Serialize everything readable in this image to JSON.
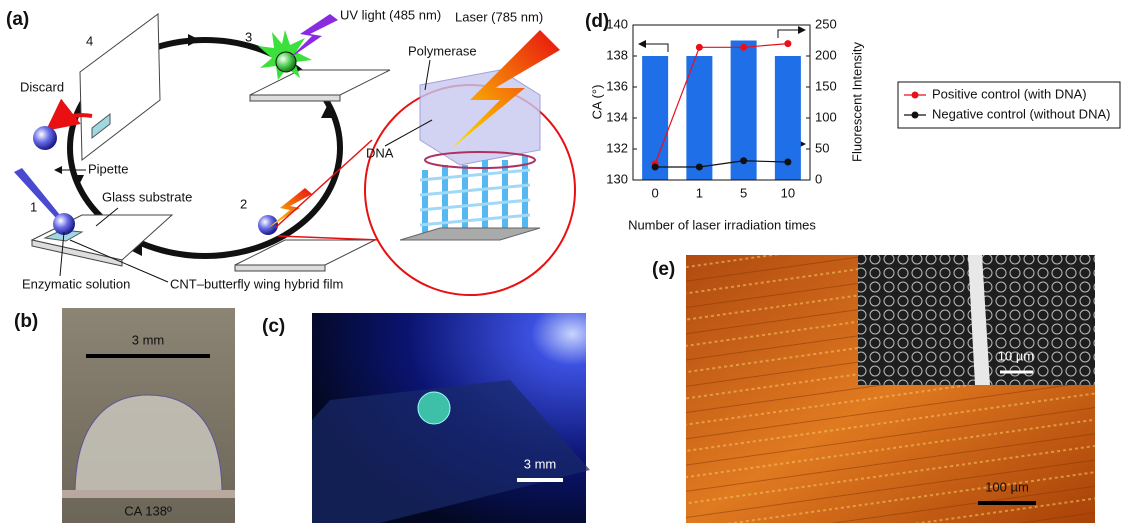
{
  "panel_a": {
    "label": "(a)",
    "step_numbers": [
      "1",
      "2",
      "3",
      "4"
    ],
    "uv_light": "UV light (485 nm)",
    "laser": "Laser (785 nm)",
    "polymerase": "Polymerase",
    "dna": "DNA",
    "discard": "Discard",
    "pipette": "Pipette",
    "glass_substrate": "Glass substrate",
    "enzymatic_solution": "Enzymatic solution",
    "hybrid_film": "CNT–butterfly wing hybrid film"
  },
  "panel_b": {
    "label": "(b)",
    "scale_bar": "3 mm",
    "contact_angle": "CA 138º"
  },
  "panel_c": {
    "label": "(c)",
    "scale_bar": "3 mm"
  },
  "panel_d": {
    "label": "(d)"
  },
  "chart_data": {
    "type": "bar",
    "categories": [
      "0",
      "1",
      "5",
      "10"
    ],
    "xlabel": "Number of laser irradiation times",
    "ylabel": "CA (°)",
    "y2label": "Fluorescent Intensity",
    "ylim": [
      130,
      140
    ],
    "yticks": [
      130,
      132,
      134,
      136,
      138,
      140
    ],
    "y2lim": [
      0,
      250
    ],
    "y2ticks": [
      0,
      50,
      100,
      150,
      200,
      250
    ],
    "legend": "right",
    "series": [
      {
        "color": "#1f6fe8",
        "values": [
          138,
          138,
          139,
          138
        ]
      },
      {
        "name": "Positive control (with DNA)",
        "type": "line",
        "axis": "y2",
        "color": "#e8101a",
        "values": [
          26,
          214,
          214,
          220
        ]
      },
      {
        "name": "Negative control (without DNA)",
        "type": "line",
        "axis": "y2",
        "color": "#111111",
        "values": [
          21,
          21,
          31,
          29
        ]
      }
    ]
  },
  "panel_e": {
    "label": "(e)",
    "inset_scale_bar": "10 µm",
    "scale_bar": "100 µm"
  }
}
